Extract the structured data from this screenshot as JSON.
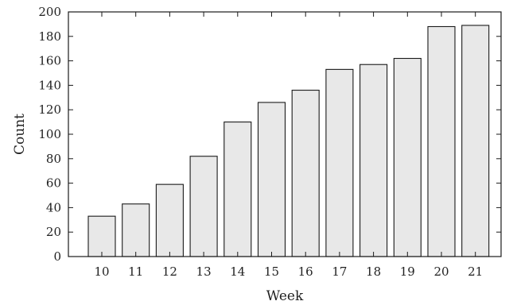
{
  "chart_data": {
    "type": "bar",
    "categories": [
      "10",
      "11",
      "12",
      "13",
      "14",
      "15",
      "16",
      "17",
      "18",
      "19",
      "20",
      "21"
    ],
    "values": [
      33,
      43,
      59,
      82,
      110,
      126,
      136,
      153,
      157,
      162,
      188,
      189
    ],
    "xlabel": "Week",
    "ylabel": "Count",
    "ylim": [
      0,
      200
    ],
    "yticks": [
      0,
      20,
      40,
      60,
      80,
      100,
      120,
      140,
      160,
      180,
      200
    ],
    "grid": false,
    "legend": "none",
    "bar_color": "#e8e8e8",
    "bar_edge_color": "#1a1a1a"
  }
}
